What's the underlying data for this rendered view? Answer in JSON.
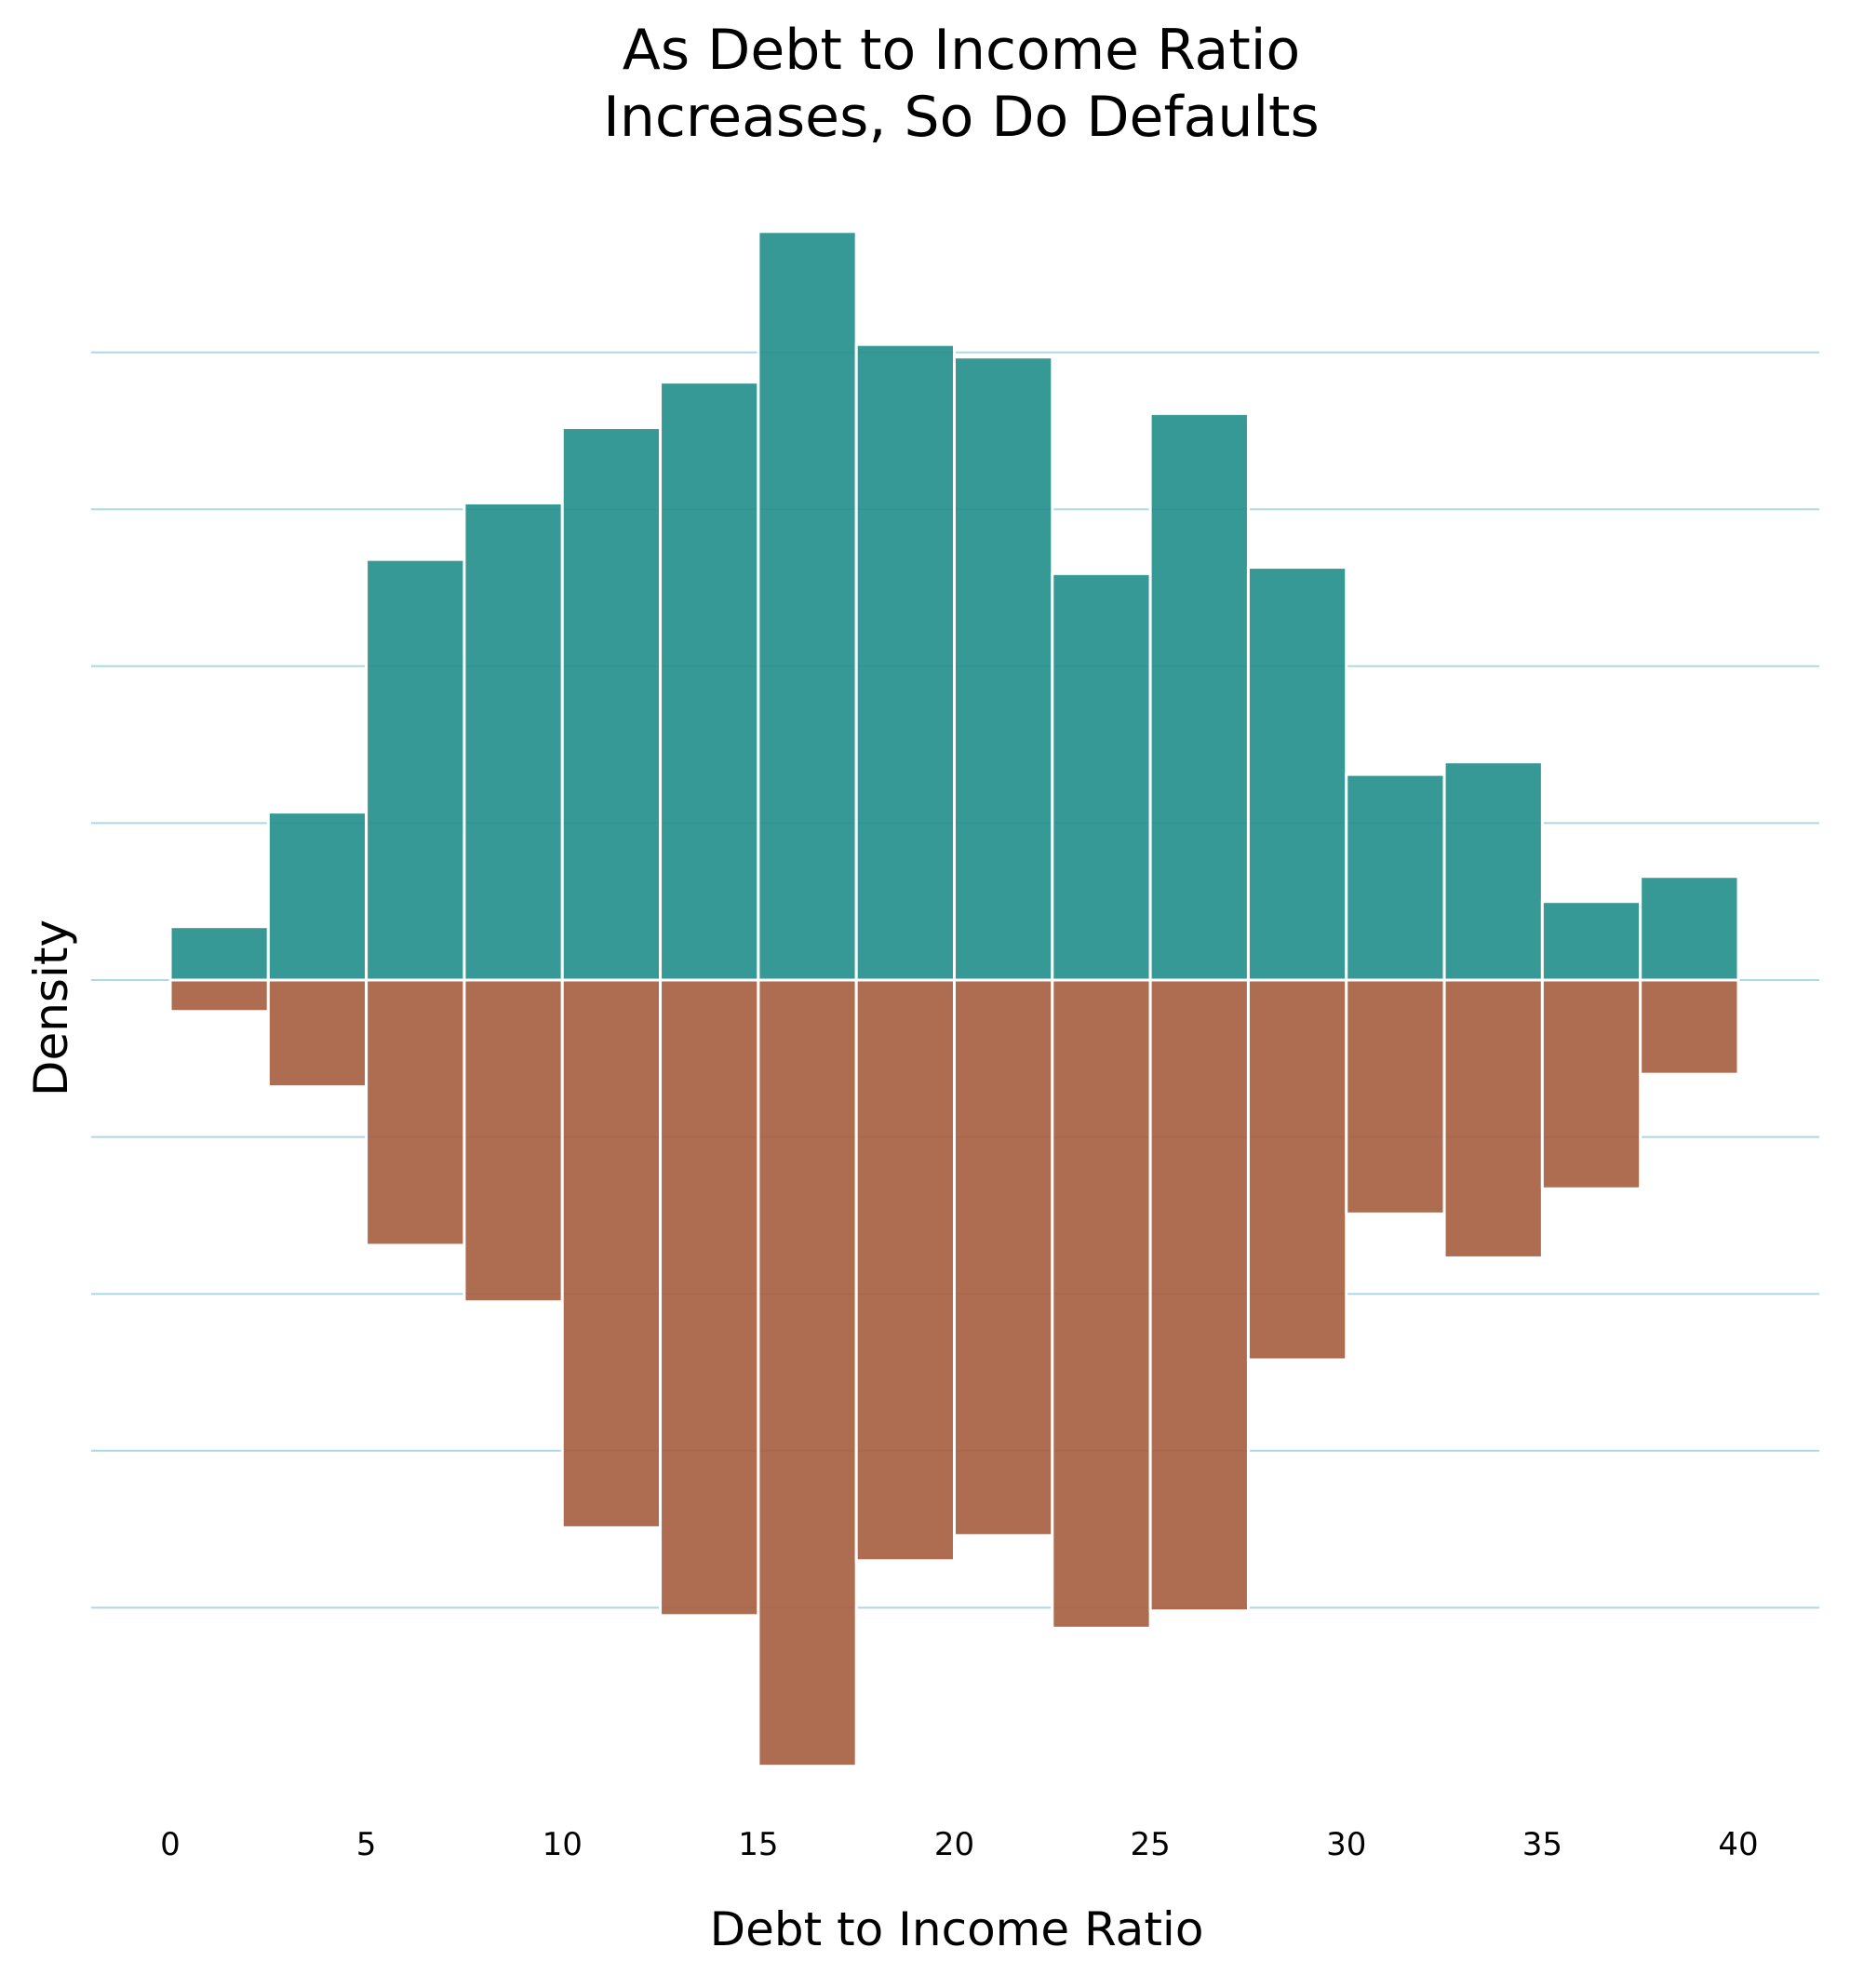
{
  "chart_data": {
    "type": "bar",
    "title_lines": [
      "As Debt to Income Ratio",
      "Increases, So Do Defaults"
    ],
    "xlabel": "Debt to Income Ratio",
    "ylabel": "Density",
    "xlim": [
      0,
      40
    ],
    "x_ticks": [
      "0",
      "5",
      "10",
      "15",
      "20",
      "25",
      "30",
      "35",
      "40"
    ],
    "bin_width": 2.5,
    "bin_starts": [
      0,
      2.5,
      5,
      7.5,
      10,
      12.5,
      15,
      17.5,
      20,
      22.5,
      25,
      27.5,
      30,
      32.5,
      35,
      37.5
    ],
    "grid": true,
    "series": [
      {
        "direction": "up",
        "color": "#218e8b",
        "values": [
          0.0034,
          0.0107,
          0.0268,
          0.0304,
          0.0352,
          0.0381,
          0.0477,
          0.0405,
          0.0397,
          0.0259,
          0.0361,
          0.0263,
          0.0131,
          0.0139,
          0.005,
          0.0066
        ]
      },
      {
        "direction": "down",
        "color": "#a55d3e",
        "values": [
          0.002,
          0.0068,
          0.0169,
          0.0205,
          0.0349,
          0.0405,
          0.0501,
          0.037,
          0.0354,
          0.0413,
          0.0402,
          0.0242,
          0.0149,
          0.0177,
          0.0133,
          0.006
        ]
      }
    ],
    "gridlines": [
      -0.04,
      -0.03,
      -0.02,
      -0.01,
      0,
      0.01,
      0.02,
      0.03,
      0.04
    ]
  }
}
